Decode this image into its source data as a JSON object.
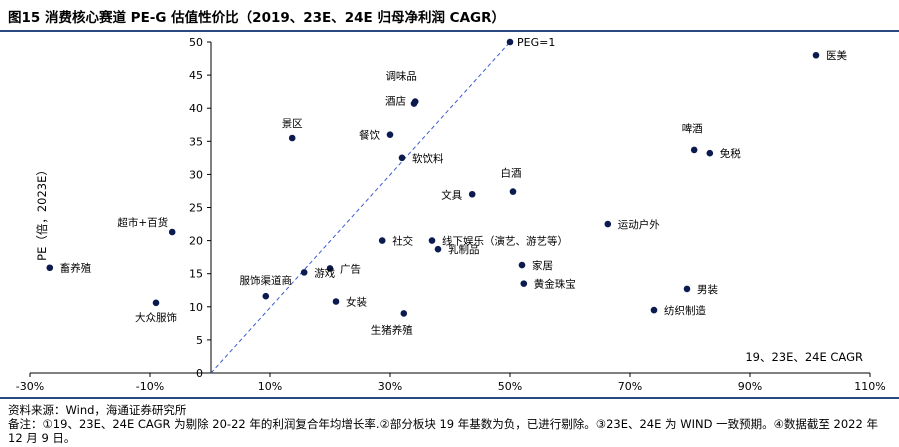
{
  "title": "图15 消费核心赛道 PE-G 估值性价比（2019、23E、24E 归母净利润 CAGR）",
  "source": "资料来源：Wind，海通证券研究所",
  "note": "备注：①19、23E、24E CAGR 为剔除 20-22 年的利润复合年均增长率.②部分板块 19 年基数为负，已进行剔除。③23E、24E 为 WIND 一致预期。④数据截至 2022 年 12 月 9 日。",
  "colors": {
    "point": "#0b1a4f",
    "peg_line": "#3a5bd0",
    "rule": "#2a4a7f"
  },
  "chart_data": {
    "type": "scatter",
    "xlabel": "19、23E、24E CAGR",
    "ylabel": "PE（倍，2023E）",
    "xlim": [
      -30,
      110
    ],
    "ylim": [
      0,
      50
    ],
    "xticks": [
      "-30%",
      "-10%",
      "10%",
      "30%",
      "50%",
      "70%",
      "90%",
      "110%"
    ],
    "xtick_values": [
      -30,
      -10,
      10,
      30,
      50,
      70,
      90,
      110
    ],
    "yticks": [
      "0",
      "5",
      "10",
      "15",
      "20",
      "25",
      "30",
      "35",
      "40",
      "45",
      "50"
    ],
    "ytick_values": [
      0,
      5,
      10,
      15,
      20,
      25,
      30,
      35,
      40,
      45,
      50
    ],
    "peg_line": {
      "label": "PEG=1",
      "from": [
        0,
        0
      ],
      "to": [
        50,
        50
      ]
    },
    "points": [
      {
        "label": "医美",
        "x": 101,
        "y": 48
      },
      {
        "label": "调味品",
        "x": 34.2,
        "y": 41
      },
      {
        "label": "酒店",
        "x": 34,
        "y": 40.7
      },
      {
        "label": "景区",
        "x": 13.7,
        "y": 35.5
      },
      {
        "label": "餐饮",
        "x": 30,
        "y": 36
      },
      {
        "label": "啤酒",
        "x": 80.7,
        "y": 33.7
      },
      {
        "label": "免税",
        "x": 83.3,
        "y": 33.2
      },
      {
        "label": "软饮料",
        "x": 32,
        "y": 32.5
      },
      {
        "label": "白酒",
        "x": 50.5,
        "y": 27.4
      },
      {
        "label": "文具",
        "x": 43.7,
        "y": 27
      },
      {
        "label": "运动户外",
        "x": 66.3,
        "y": 22.5
      },
      {
        "label": "超市+百货",
        "x": -6.3,
        "y": 21.3
      },
      {
        "label": "社交",
        "x": 28.7,
        "y": 20
      },
      {
        "label": "线下娱乐（演艺、游艺等）",
        "x": 37,
        "y": 20
      },
      {
        "label": "乳制品",
        "x": 38,
        "y": 18.7
      },
      {
        "label": "畜养殖",
        "x": -26.7,
        "y": 15.9
      },
      {
        "label": "广告",
        "x": 20,
        "y": 15.8
      },
      {
        "label": "游戏",
        "x": 15.7,
        "y": 15.2
      },
      {
        "label": "家居",
        "x": 52,
        "y": 16.3
      },
      {
        "label": "黄金珠宝",
        "x": 52.3,
        "y": 13.5
      },
      {
        "label": "男装",
        "x": 79.5,
        "y": 12.7
      },
      {
        "label": "服饰渠道商",
        "x": 9.3,
        "y": 11.6
      },
      {
        "label": "大众服饰",
        "x": -9,
        "y": 10.6
      },
      {
        "label": "女装",
        "x": 21,
        "y": 10.8
      },
      {
        "label": "纺织制造",
        "x": 74,
        "y": 9.5
      },
      {
        "label": "生猪养殖",
        "x": 32.3,
        "y": 9
      }
    ]
  }
}
